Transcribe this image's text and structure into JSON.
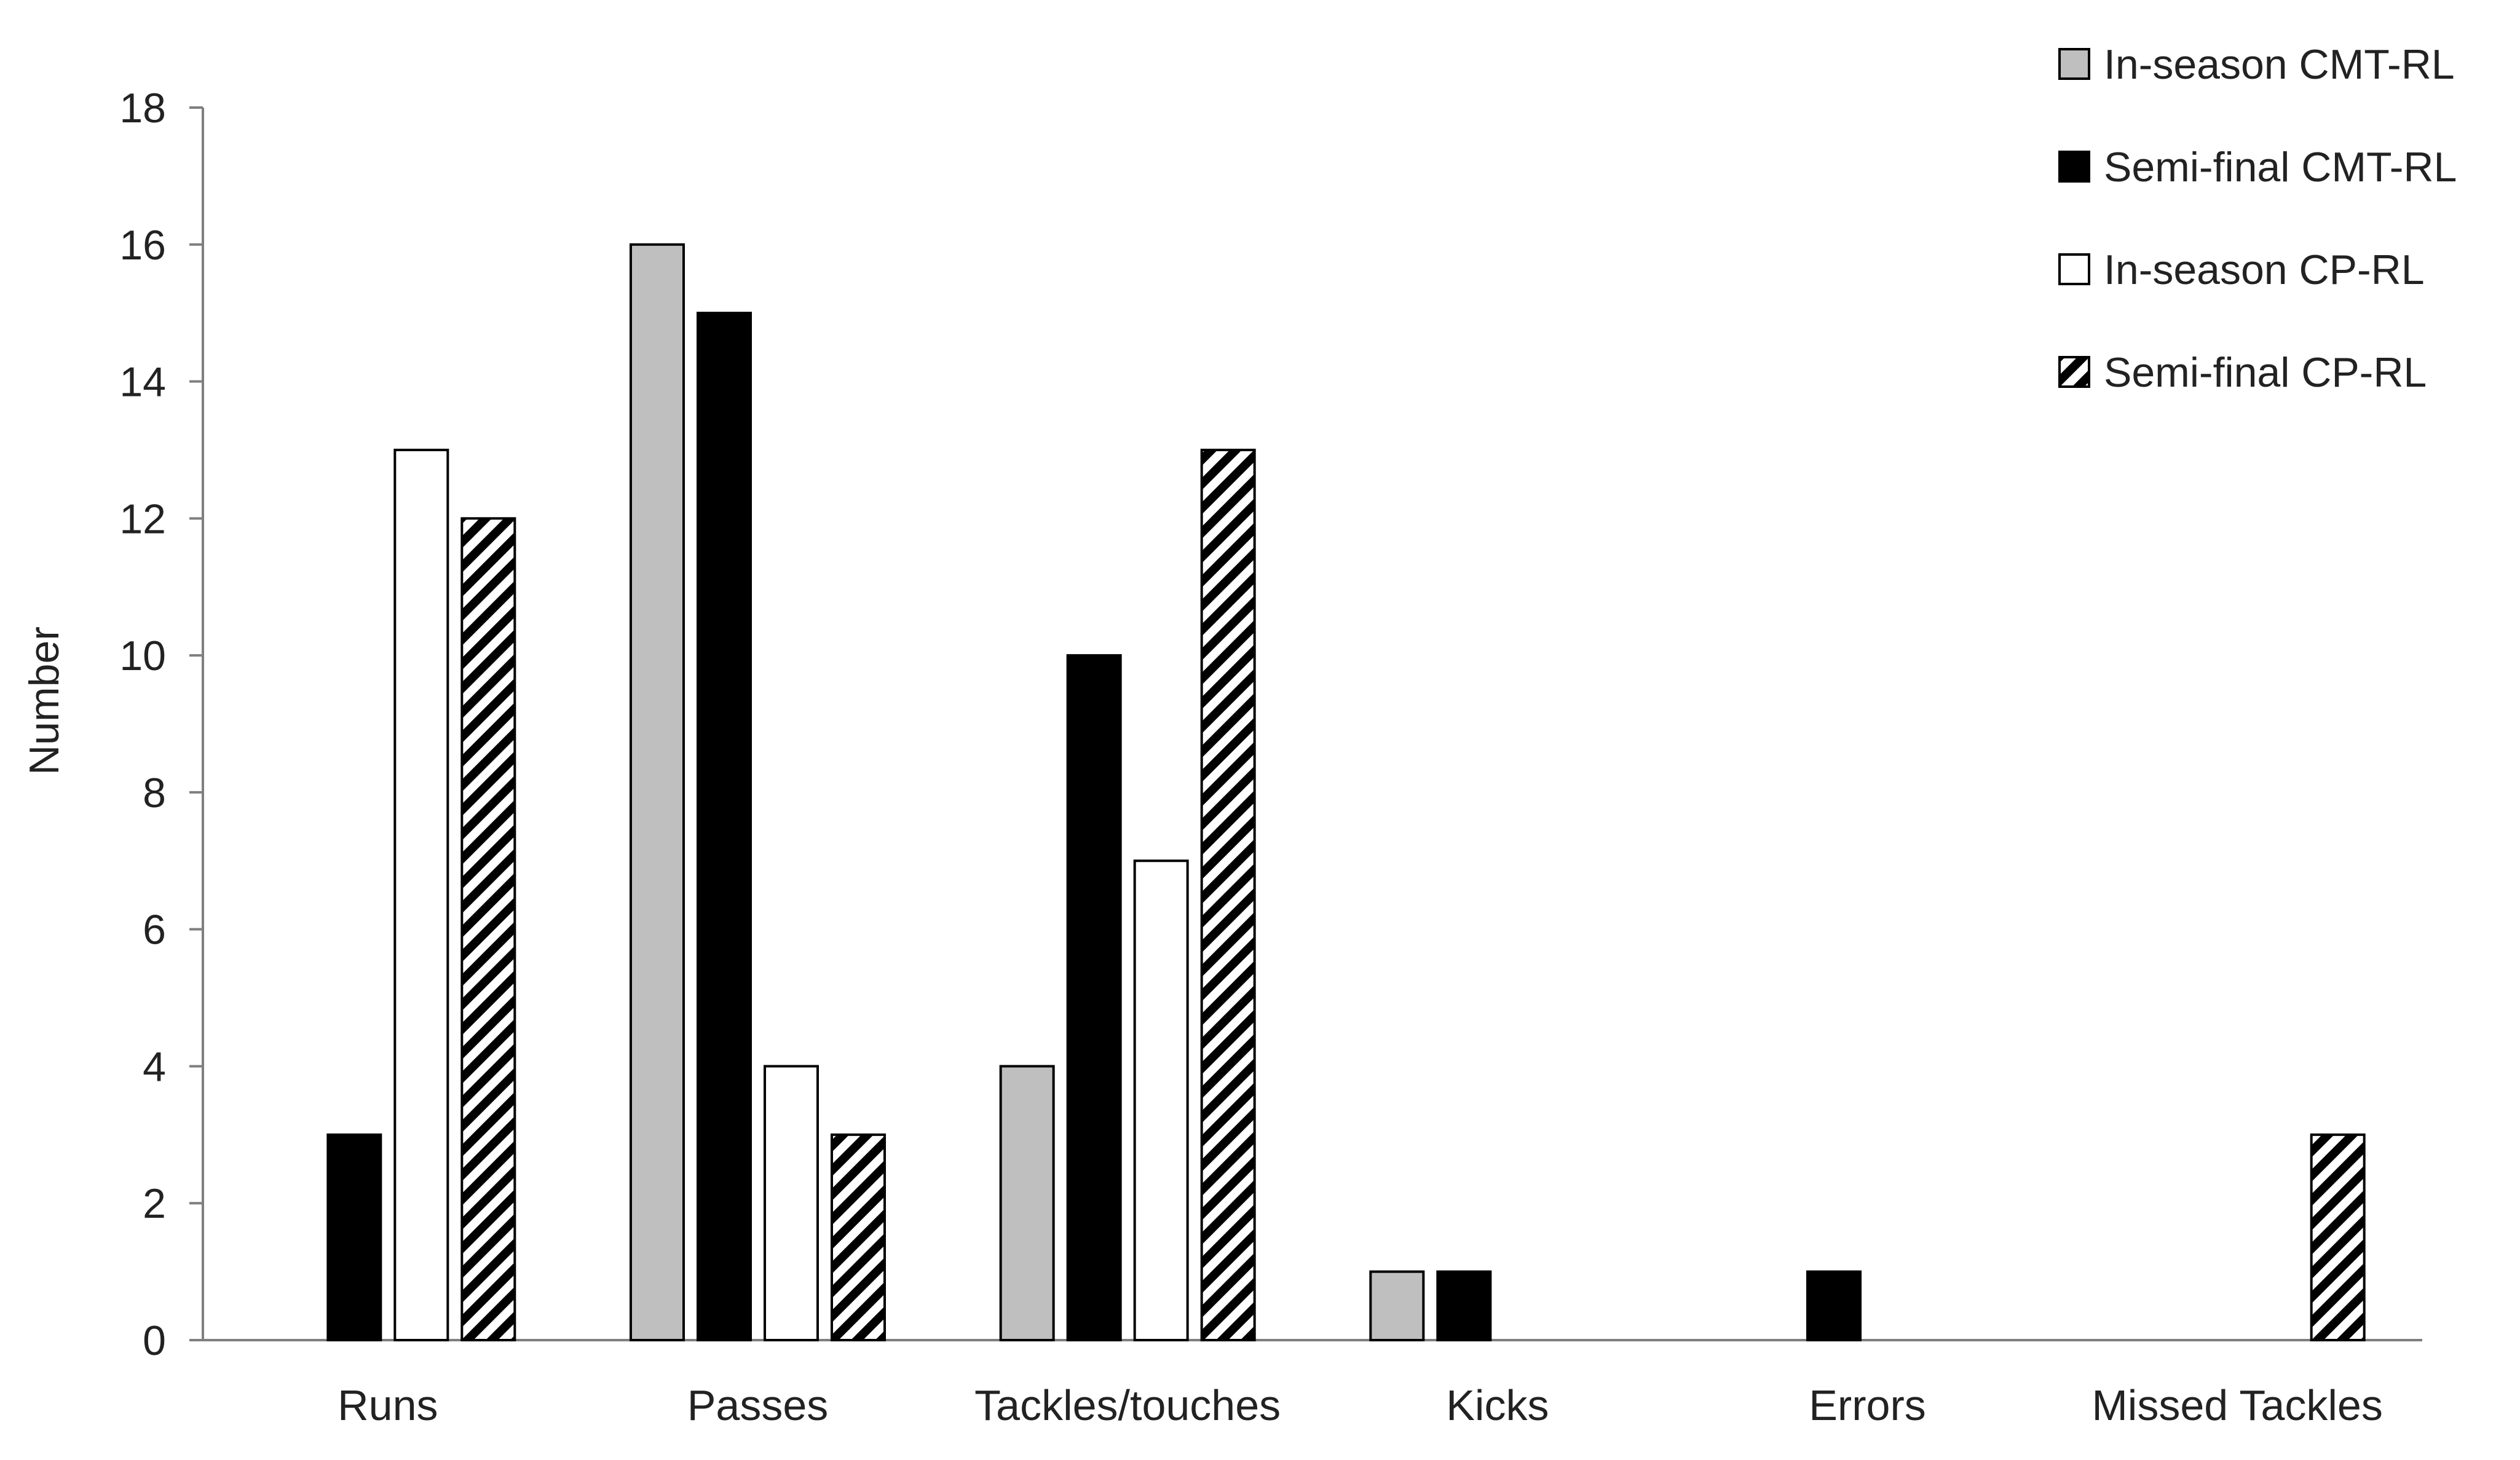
{
  "chart_data": {
    "type": "bar",
    "title": "",
    "xlabel": "",
    "ylabel": "Number",
    "ylim": [
      0,
      18
    ],
    "yticks": [
      0,
      2,
      4,
      6,
      8,
      10,
      12,
      14,
      16,
      18
    ],
    "grid": false,
    "legend_position": "top-right",
    "categories": [
      "Runs",
      "Passes",
      "Tackles/touches",
      "Kicks",
      "Errors",
      "Missed Tackles"
    ],
    "series": [
      {
        "name": "In-season CMT-RL",
        "fill": "#bfbfbf",
        "pattern": "solid",
        "values": [
          0,
          16,
          4,
          1,
          0,
          0
        ]
      },
      {
        "name": "Semi-final CMT-RL",
        "fill": "#000000",
        "pattern": "solid",
        "values": [
          3,
          15,
          10,
          1,
          1,
          0
        ]
      },
      {
        "name": "In-season CP-RL",
        "fill": "#ffffff",
        "pattern": "solid",
        "values": [
          13,
          4,
          7,
          0,
          0,
          0
        ]
      },
      {
        "name": "Semi-final CP-RL",
        "fill": "#ffffff",
        "pattern": "diagonal-hatch",
        "values": [
          12,
          3,
          13,
          0,
          0,
          3
        ]
      }
    ]
  }
}
